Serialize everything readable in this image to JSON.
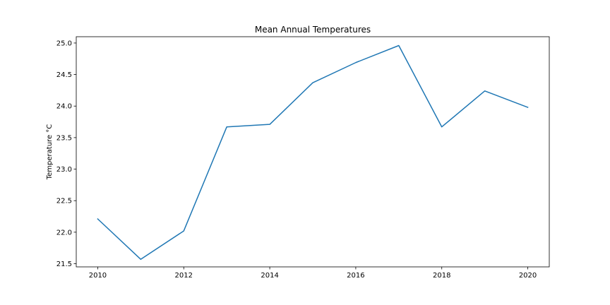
{
  "chart_data": {
    "type": "line",
    "title": "Mean Annual Temperatures",
    "xlabel": "",
    "ylabel": "Temperature °C",
    "xlim": [
      2009.5,
      2020.5
    ],
    "ylim": [
      21.45,
      25.1
    ],
    "x_ticks": [
      2010,
      2012,
      2014,
      2016,
      2018,
      2020
    ],
    "x_tick_labels": [
      "2010",
      "2012",
      "2014",
      "2016",
      "2018",
      "2020"
    ],
    "y_ticks": [
      21.5,
      22.0,
      22.5,
      23.0,
      23.5,
      24.0,
      24.5,
      25.0
    ],
    "y_tick_labels": [
      "21.5",
      "22.0",
      "22.5",
      "23.0",
      "23.5",
      "24.0",
      "24.5",
      "25.0"
    ],
    "grid": false,
    "legend": "none",
    "series": [
      {
        "color": "#1f77b4",
        "x": [
          2010,
          2011,
          2012,
          2013,
          2014,
          2015,
          2016,
          2017,
          2018,
          2019,
          2020
        ],
        "y": [
          22.21,
          21.57,
          22.02,
          23.67,
          23.71,
          24.37,
          24.69,
          24.96,
          23.67,
          24.24,
          23.98
        ]
      }
    ]
  }
}
